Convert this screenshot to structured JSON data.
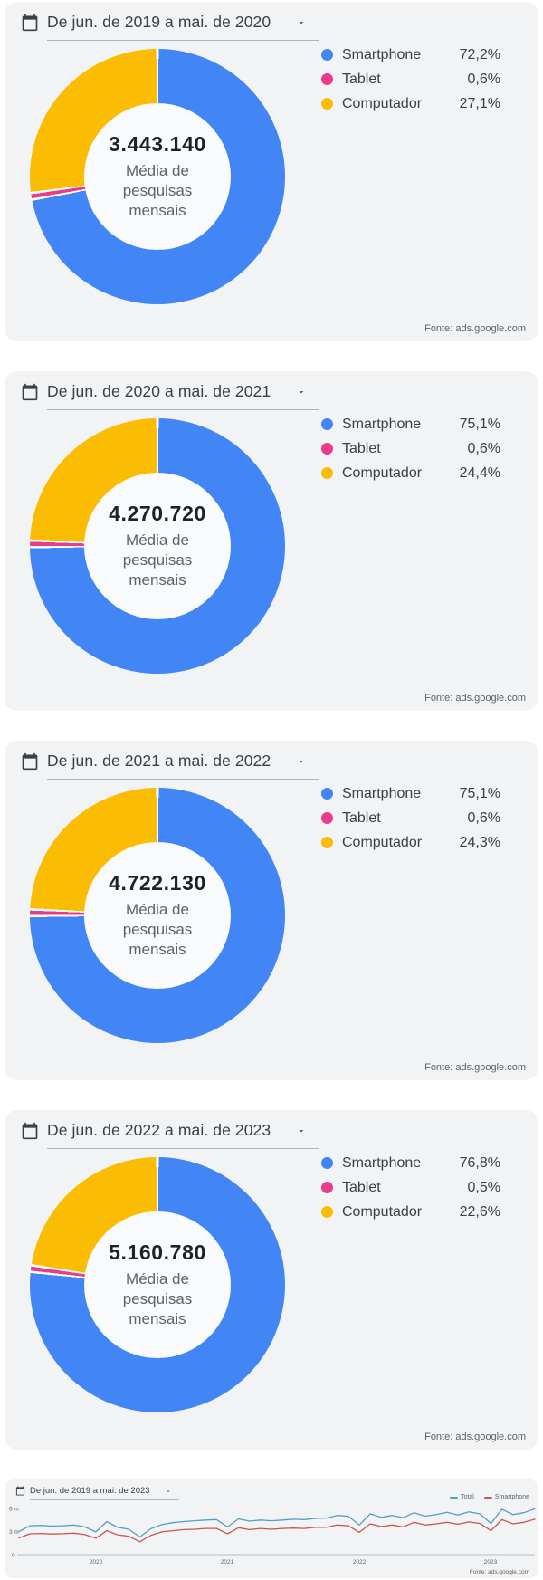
{
  "chart_data": [
    {
      "type": "pie",
      "title": "De jun. de 2019 a mai. de 2020",
      "center_value": "3.443.140",
      "center_label": "Média de pesquisas mensais",
      "labels": [
        "Smartphone",
        "Tablet",
        "Computador"
      ],
      "values": [
        72.2,
        0.6,
        27.1
      ],
      "value_labels": [
        "72,2%",
        "0,6%",
        "27,1%"
      ],
      "colors": [
        "#4285f4",
        "#ea3b8d",
        "#fbbc04"
      ],
      "source": "Fonte: ads.google.com"
    },
    {
      "type": "pie",
      "title": "De jun. de 2020 a mai. de 2021",
      "center_value": "4.270.720",
      "center_label": "Média de pesquisas mensais",
      "labels": [
        "Smartphone",
        "Tablet",
        "Computador"
      ],
      "values": [
        75.1,
        0.6,
        24.4
      ],
      "value_labels": [
        "75,1%",
        "0,6%",
        "24,4%"
      ],
      "colors": [
        "#4285f4",
        "#ea3b8d",
        "#fbbc04"
      ],
      "source": "Fonte: ads.google.com"
    },
    {
      "type": "pie",
      "title": "De jun. de 2021 a mai. de 2022",
      "center_value": "4.722.130",
      "center_label": "Média de pesquisas mensais",
      "labels": [
        "Smartphone",
        "Tablet",
        "Computador"
      ],
      "values": [
        75.1,
        0.6,
        24.3
      ],
      "value_labels": [
        "75,1%",
        "0,6%",
        "24,3%"
      ],
      "colors": [
        "#4285f4",
        "#ea3b8d",
        "#fbbc04"
      ],
      "source": "Fonte: ads.google.com"
    },
    {
      "type": "pie",
      "title": "De jun. de 2022 a mai. de 2023",
      "center_value": "5.160.780",
      "center_label": "Média de pesquisas mensais",
      "labels": [
        "Smartphone",
        "Tablet",
        "Computador"
      ],
      "values": [
        76.8,
        0.5,
        22.6
      ],
      "value_labels": [
        "76,8%",
        "0,5%",
        "22,6%"
      ],
      "colors": [
        "#4285f4",
        "#ea3b8d",
        "#fbbc04"
      ],
      "source": "Fonte: ads.google.com"
    },
    {
      "type": "line",
      "title": "De jun. de 2019 a mai. de 2023",
      "x_tick_labels": [
        "2020",
        "2021",
        "2022",
        "2023"
      ],
      "y_tick_labels": [
        "6 m",
        "3 m",
        "0"
      ],
      "ylim": [
        0,
        6.5
      ],
      "x_range": "48 monthly values, jun/2019 to mai/2023, searches in millions",
      "series": [
        {
          "name": "Total",
          "color": "#55a0c2",
          "values": [
            3.0,
            3.75,
            3.8,
            3.7,
            3.75,
            3.85,
            3.6,
            2.95,
            4.3,
            3.55,
            3.3,
            2.3,
            3.35,
            3.9,
            4.15,
            4.3,
            4.4,
            4.5,
            4.55,
            3.6,
            4.65,
            4.35,
            4.5,
            4.4,
            4.5,
            4.6,
            4.55,
            4.7,
            4.75,
            5.1,
            5.0,
            3.85,
            5.3,
            4.85,
            5.1,
            4.8,
            5.45,
            5.0,
            5.2,
            5.5,
            5.15,
            5.55,
            5.3,
            4.05,
            5.9,
            5.2,
            5.45,
            5.95
          ]
        },
        {
          "name": "Smartphone",
          "color": "#c4584e",
          "values": [
            2.18,
            2.7,
            2.75,
            2.68,
            2.72,
            2.79,
            2.6,
            2.14,
            3.1,
            2.57,
            2.4,
            1.67,
            2.5,
            2.95,
            3.1,
            3.25,
            3.3,
            3.4,
            3.4,
            2.7,
            3.5,
            3.25,
            3.4,
            3.3,
            3.4,
            3.45,
            3.4,
            3.55,
            3.55,
            3.85,
            3.75,
            2.9,
            4.0,
            3.65,
            3.85,
            3.6,
            4.2,
            3.85,
            4.0,
            4.2,
            3.95,
            4.25,
            4.05,
            3.1,
            4.55,
            4.0,
            4.2,
            4.6
          ]
        }
      ],
      "source": "Fonte: ads.google.com"
    }
  ]
}
